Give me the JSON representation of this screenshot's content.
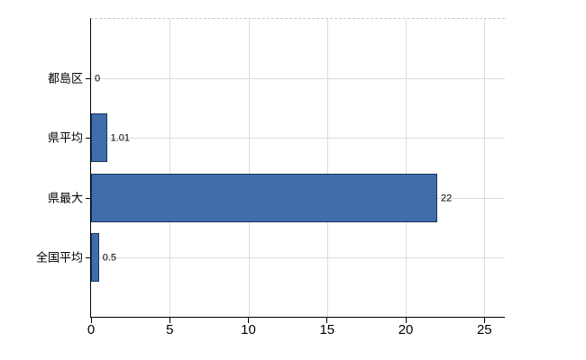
{
  "chart_data": {
    "type": "bar",
    "orientation": "horizontal",
    "title": "",
    "xlabel": "",
    "ylabel": "",
    "categories": [
      "都島区",
      "県平均",
      "県最大",
      "全国平均"
    ],
    "values": [
      0,
      1.01,
      22,
      0.5
    ],
    "value_labels": [
      "0",
      "1.01",
      "22",
      "0.5"
    ],
    "x_ticks": [
      0,
      5,
      10,
      15,
      20,
      25
    ],
    "xlim": [
      0,
      26.3
    ],
    "grid": true,
    "legend": false,
    "colors": {
      "bar_fill": "#35639f",
      "bar_fill_light": "#4a78b6",
      "bar_border": "#17365d",
      "gridline": "#d9ddd9",
      "axis": "#000000",
      "frame_dashed": "#c9c9c9",
      "text": "#000000",
      "background": "#ffffff"
    }
  }
}
